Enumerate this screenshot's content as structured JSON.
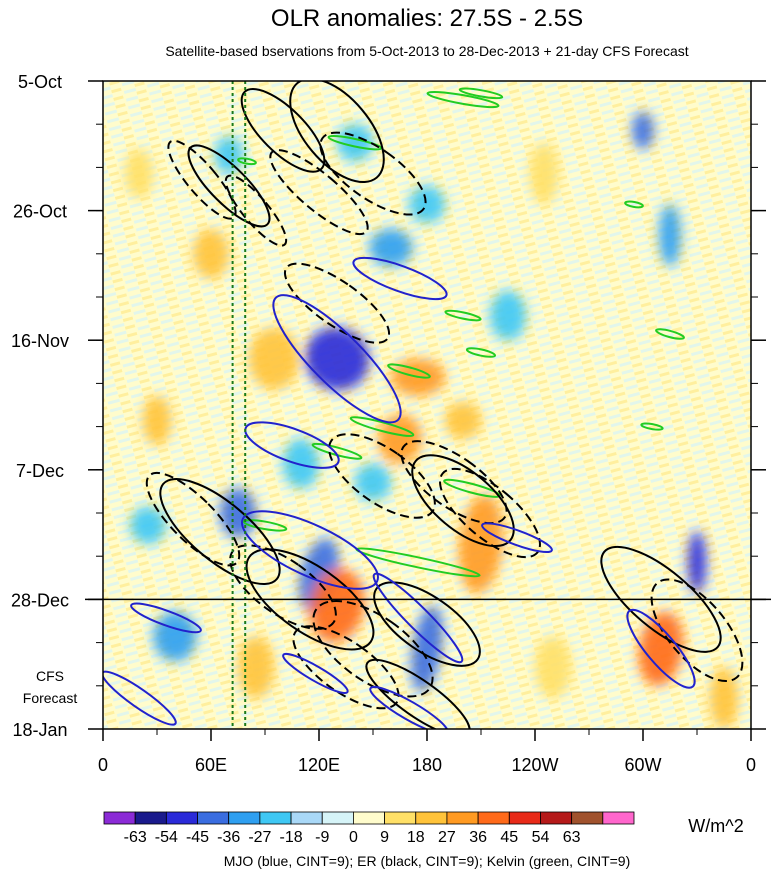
{
  "chart_data": {
    "type": "heatmap",
    "title": "OLR anomalies: 27.5S - 2.5S",
    "subtitle": "Satellite-based bservations from 5-Oct-2013 to 28-Dec-2013 + 21-day CFS Forecast",
    "forecast_label_line1": "CFS",
    "forecast_label_line2": "Forecast",
    "x_ticks": [
      {
        "lon": 0,
        "label": "0"
      },
      {
        "lon": 60,
        "label": "60E"
      },
      {
        "lon": 120,
        "label": "120E"
      },
      {
        "lon": 180,
        "label": "180"
      },
      {
        "lon": 240,
        "label": "120W"
      },
      {
        "lon": 300,
        "label": "60W"
      },
      {
        "lon": 360,
        "label": "0"
      }
    ],
    "y_range_days": [
      0,
      105
    ],
    "y_ticks": [
      {
        "day": 0,
        "label": "5-Oct"
      },
      {
        "day": 21,
        "label": "26-Oct"
      },
      {
        "day": 42,
        "label": "16-Nov"
      },
      {
        "day": 63,
        "label": "7-Dec"
      },
      {
        "day": 84,
        "label": "28-Dec"
      },
      {
        "day": 105,
        "label": "18-Jan"
      }
    ],
    "forecast_start_day": 84,
    "reference_lons": [
      72,
      79
    ],
    "colorbar": {
      "unit": "W/m^2",
      "levels": [
        "-63",
        "-54",
        "-45",
        "-36",
        "-27",
        "-18",
        "-9",
        "0",
        "9",
        "18",
        "27",
        "36",
        "45",
        "54",
        "63"
      ],
      "colors": [
        "#8b2bd6",
        "#1a1a8c",
        "#2a2ad8",
        "#3a6de0",
        "#2f9ff0",
        "#3fc8f4",
        "#a9d8f7",
        "#d6f4f8",
        "#fffccc",
        "#ffe067",
        "#ffc33a",
        "#ff9a22",
        "#ff6a1a",
        "#e82a18",
        "#b51a1a",
        "#a0522d",
        "#ff66cc"
      ]
    },
    "footnote": "MJO (blue, CINT=9); ER (black, CINT=9); Kelvin (green, CINT=9)",
    "contour_colors": {
      "mjo": "#2222cc",
      "er": "#000000",
      "kelvin": "#22cc22"
    },
    "anomalies": [
      {
        "lon": 130,
        "day": 45,
        "value": -50,
        "rx": 18,
        "ry": 5,
        "tilt": 1.0
      },
      {
        "lon": 75,
        "day": 70,
        "value": -45,
        "rx": 10,
        "ry": 4,
        "tilt": 0
      },
      {
        "lon": 120,
        "day": 80,
        "value": -40,
        "rx": 10,
        "ry": 6,
        "tilt": 0.5
      },
      {
        "lon": 180,
        "day": 92,
        "value": -40,
        "rx": 8,
        "ry": 7,
        "tilt": 0.3
      },
      {
        "lon": 40,
        "day": 90,
        "value": -30,
        "rx": 12,
        "ry": 4,
        "tilt": 0
      },
      {
        "lon": 25,
        "day": 72,
        "value": -25,
        "rx": 10,
        "ry": 3,
        "tilt": 0
      },
      {
        "lon": 130,
        "day": 85,
        "value": 40,
        "rx": 15,
        "ry": 6,
        "tilt": 0.4
      },
      {
        "lon": 210,
        "day": 75,
        "value": 35,
        "rx": 12,
        "ry": 8,
        "tilt": 0.2
      },
      {
        "lon": 310,
        "day": 92,
        "value": 40,
        "rx": 12,
        "ry": 6,
        "tilt": 0.3
      },
      {
        "lon": 175,
        "day": 48,
        "value": 30,
        "rx": 15,
        "ry": 3,
        "tilt": 0
      },
      {
        "lon": 165,
        "day": 58,
        "value": 30,
        "rx": 12,
        "ry": 4,
        "tilt": 0.3
      },
      {
        "lon": 200,
        "day": 55,
        "value": 25,
        "rx": 10,
        "ry": 3,
        "tilt": 0.2
      },
      {
        "lon": 95,
        "day": 45,
        "value": 25,
        "rx": 14,
        "ry": 5,
        "tilt": 0
      },
      {
        "lon": 60,
        "day": 28,
        "value": 20,
        "rx": 10,
        "ry": 4,
        "tilt": 0
      },
      {
        "lon": 160,
        "day": 27,
        "value": -30,
        "rx": 12,
        "ry": 3,
        "tilt": 0
      },
      {
        "lon": 180,
        "day": 20,
        "value": -25,
        "rx": 10,
        "ry": 3,
        "tilt": 0
      },
      {
        "lon": 300,
        "day": 8,
        "value": -45,
        "rx": 6,
        "ry": 3,
        "tilt": 0
      },
      {
        "lon": 315,
        "day": 25,
        "value": -30,
        "rx": 6,
        "ry": 5,
        "tilt": 0
      },
      {
        "lon": 330,
        "day": 78,
        "value": -50,
        "rx": 5,
        "ry": 5,
        "tilt": 0
      },
      {
        "lon": 225,
        "day": 38,
        "value": -25,
        "rx": 10,
        "ry": 4,
        "tilt": 0
      },
      {
        "lon": 110,
        "day": 62,
        "value": -25,
        "rx": 10,
        "ry": 4,
        "tilt": 0
      },
      {
        "lon": 30,
        "day": 55,
        "value": 20,
        "rx": 8,
        "ry": 4,
        "tilt": 0
      },
      {
        "lon": 85,
        "day": 95,
        "value": 20,
        "rx": 10,
        "ry": 5,
        "tilt": 0
      },
      {
        "lon": 250,
        "day": 95,
        "value": 15,
        "rx": 10,
        "ry": 5,
        "tilt": 0
      },
      {
        "lon": 345,
        "day": 100,
        "value": 25,
        "rx": 8,
        "ry": 5,
        "tilt": 0
      },
      {
        "lon": 20,
        "day": 15,
        "value": 15,
        "rx": 8,
        "ry": 4,
        "tilt": 0
      },
      {
        "lon": 140,
        "day": 10,
        "value": -20,
        "rx": 10,
        "ry": 3,
        "tilt": 0
      },
      {
        "lon": 70,
        "day": 12,
        "value": -20,
        "rx": 8,
        "ry": 3,
        "tilt": 0
      },
      {
        "lon": 245,
        "day": 15,
        "value": 15,
        "rx": 8,
        "ry": 5,
        "tilt": 0
      },
      {
        "lon": 150,
        "day": 65,
        "value": -20,
        "rx": 10,
        "ry": 3,
        "tilt": 0
      }
    ],
    "er_contours": [
      {
        "lon": 100,
        "day": 8,
        "rx": 12,
        "ry": 2.2,
        "deg": 45,
        "dashed": false
      },
      {
        "lon": 120,
        "day": 18,
        "rx": 10,
        "ry": 2.5,
        "deg": 50,
        "dashed": true
      },
      {
        "lon": 130,
        "day": 8,
        "rx": 18,
        "ry": 2.5,
        "deg": 40,
        "dashed": false
      },
      {
        "lon": 150,
        "day": 15,
        "rx": 14,
        "ry": 2.5,
        "deg": 55,
        "dashed": true
      },
      {
        "lon": 70,
        "day": 17,
        "rx": 10,
        "ry": 2.2,
        "deg": 45,
        "dashed": false
      },
      {
        "lon": 55,
        "day": 16,
        "rx": 8,
        "ry": 2.0,
        "deg": 40,
        "dashed": true
      },
      {
        "lon": 85,
        "day": 21,
        "rx": 7,
        "ry": 1.8,
        "deg": 40,
        "dashed": true
      },
      {
        "lon": 130,
        "day": 36,
        "rx": 12,
        "ry": 2.5,
        "deg": 55,
        "dashed": true
      },
      {
        "lon": 155,
        "day": 64,
        "rx": 15,
        "ry": 2.5,
        "deg": 55,
        "dashed": true
      },
      {
        "lon": 65,
        "day": 73,
        "rx": 16,
        "ry": 3.0,
        "deg": 50,
        "dashed": false
      },
      {
        "lon": 50,
        "day": 71,
        "rx": 12,
        "ry": 2.5,
        "deg": 45,
        "dashed": true
      },
      {
        "lon": 115,
        "day": 84,
        "rx": 18,
        "ry": 3.0,
        "deg": 55,
        "dashed": false
      },
      {
        "lon": 100,
        "day": 82,
        "rx": 15,
        "ry": 2.5,
        "deg": 55,
        "dashed": true
      },
      {
        "lon": 200,
        "day": 68,
        "rx": 16,
        "ry": 2.5,
        "deg": 50,
        "dashed": false
      },
      {
        "lon": 195,
        "day": 65,
        "rx": 14,
        "ry": 2.5,
        "deg": 55,
        "dashed": true
      },
      {
        "lon": 215,
        "day": 70,
        "rx": 14,
        "ry": 2.5,
        "deg": 50,
        "dashed": true
      },
      {
        "lon": 180,
        "day": 88,
        "rx": 15,
        "ry": 2.5,
        "deg": 55,
        "dashed": false
      },
      {
        "lon": 150,
        "day": 92,
        "rx": 18,
        "ry": 2.8,
        "deg": 55,
        "dashed": true
      },
      {
        "lon": 135,
        "day": 95,
        "rx": 14,
        "ry": 2.5,
        "deg": 55,
        "dashed": true
      },
      {
        "lon": 310,
        "day": 84,
        "rx": 16,
        "ry": 3.0,
        "deg": 50,
        "dashed": false
      },
      {
        "lon": 330,
        "day": 89,
        "rx": 16,
        "ry": 2.5,
        "deg": 40,
        "dashed": true
      },
      {
        "lon": 175,
        "day": 100,
        "rx": 10,
        "ry": 2.5,
        "deg": 55,
        "dashed": false
      }
    ],
    "mjo_contours": [
      {
        "lon": 130,
        "day": 45,
        "rx": 14,
        "ry": 3.5,
        "deg": 45
      },
      {
        "lon": 165,
        "day": 32,
        "rx": 7,
        "ry": 2.0,
        "deg": 70
      },
      {
        "lon": 105,
        "day": 59,
        "rx": 9,
        "ry": 2.0,
        "deg": 70
      },
      {
        "lon": 115,
        "day": 76,
        "rx": 14,
        "ry": 3.0,
        "deg": 65
      },
      {
        "lon": 35,
        "day": 87,
        "rx": 4,
        "ry": 1.5,
        "deg": 70
      },
      {
        "lon": 175,
        "day": 87,
        "rx": 6,
        "ry": 2.5,
        "deg": 45
      },
      {
        "lon": 230,
        "day": 74,
        "rx": 4,
        "ry": 1.5,
        "deg": 70
      },
      {
        "lon": 310,
        "day": 92,
        "rx": 8,
        "ry": 2.0,
        "deg": 40
      },
      {
        "lon": 20,
        "day": 100,
        "rx": 5,
        "ry": 1.8,
        "deg": 55
      },
      {
        "lon": 118,
        "day": 96,
        "rx": 4,
        "ry": 1.5,
        "deg": 60
      },
      {
        "lon": 170,
        "day": 102,
        "rx": 5,
        "ry": 1.8,
        "deg": 60
      }
    ],
    "kelvin_contours": [
      {
        "lon": 200,
        "day": 3,
        "rx": 20,
        "ry": 0.7,
        "deg": 10
      },
      {
        "lon": 140,
        "day": 10,
        "rx": 15,
        "ry": 0.6,
        "deg": 12
      },
      {
        "lon": 210,
        "day": 2,
        "rx": 12,
        "ry": 0.5,
        "deg": 10
      },
      {
        "lon": 170,
        "day": 47,
        "rx": 12,
        "ry": 0.6,
        "deg": 15
      },
      {
        "lon": 155,
        "day": 56,
        "rx": 18,
        "ry": 0.7,
        "deg": 15
      },
      {
        "lon": 130,
        "day": 60,
        "rx": 14,
        "ry": 0.6,
        "deg": 15
      },
      {
        "lon": 205,
        "day": 66,
        "rx": 16,
        "ry": 0.7,
        "deg": 15
      },
      {
        "lon": 175,
        "day": 78,
        "rx": 35,
        "ry": 0.8,
        "deg": 12
      },
      {
        "lon": 90,
        "day": 72,
        "rx": 12,
        "ry": 0.6,
        "deg": 10
      },
      {
        "lon": 315,
        "day": 41,
        "rx": 8,
        "ry": 0.5,
        "deg": 15
      },
      {
        "lon": 305,
        "day": 56,
        "rx": 6,
        "ry": 0.4,
        "deg": 10
      },
      {
        "lon": 295,
        "day": 20,
        "rx": 5,
        "ry": 0.4,
        "deg": 10
      },
      {
        "lon": 200,
        "day": 38,
        "rx": 10,
        "ry": 0.5,
        "deg": 12
      },
      {
        "lon": 210,
        "day": 44,
        "rx": 8,
        "ry": 0.5,
        "deg": 12
      },
      {
        "lon": 80,
        "day": 13,
        "rx": 5,
        "ry": 0.4,
        "deg": 10
      }
    ]
  }
}
